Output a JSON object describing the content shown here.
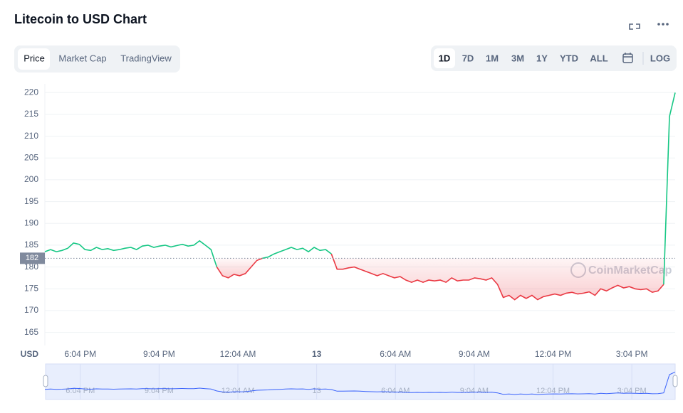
{
  "header": {
    "title": "Litecoin to USD Chart",
    "tabs": [
      "Price",
      "Market Cap",
      "TradingView"
    ],
    "ranges": [
      "1D",
      "7D",
      "1M",
      "3M",
      "1Y",
      "YTD",
      "ALL"
    ],
    "log": "LOG"
  },
  "chart_data": {
    "type": "line",
    "watermark": "CoinMarketCap",
    "ylabel": "USD",
    "ylim": [
      162,
      222
    ],
    "yticks": [
      165,
      170,
      175,
      180,
      185,
      190,
      195,
      200,
      205,
      210,
      215,
      220
    ],
    "grid": true,
    "baseline": 182,
    "up_color": "#16c784",
    "down_color": "#ea3943",
    "nav_color": "#3861fb",
    "xticks": [
      "6:04 PM",
      "9:04 PM",
      "12:04 AM",
      "13",
      "6:04 AM",
      "9:04 AM",
      "12:04 PM",
      "3:04 PM"
    ],
    "series": [
      {
        "name": "Price",
        "values": [
          183.5,
          184,
          183.5,
          183.8,
          184.3,
          185.5,
          185.2,
          184,
          183.8,
          184.5,
          184,
          184.2,
          183.8,
          184,
          184.3,
          184.5,
          184,
          184.8,
          185,
          184.5,
          184.8,
          185,
          184.6,
          184.9,
          185.2,
          184.8,
          185,
          186,
          185,
          184,
          180,
          178,
          177.5,
          178.3,
          178,
          178.5,
          180,
          181.5,
          182,
          182.3,
          183,
          183.5,
          184,
          184.5,
          184,
          184.3,
          183.5,
          184.5,
          183.8,
          184,
          183,
          179.5,
          179.5,
          179.8,
          180,
          179.5,
          179,
          178.5,
          178,
          178.5,
          178,
          177.5,
          177.8,
          177,
          176.5,
          177,
          176.5,
          177,
          176.8,
          177,
          176.5,
          177.5,
          176.8,
          177,
          177,
          177.5,
          177.3,
          177,
          177.5,
          176,
          173,
          173.5,
          172.5,
          173.5,
          172.8,
          173.5,
          172.5,
          173.2,
          173.5,
          173.8,
          173.5,
          174,
          174.2,
          173.8,
          174,
          174.3,
          173.5,
          175,
          174.5,
          175.2,
          175.8,
          175.2,
          175.5,
          175,
          174.8,
          175,
          174.2,
          174.5,
          176,
          214.5,
          220
        ]
      }
    ]
  }
}
